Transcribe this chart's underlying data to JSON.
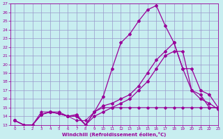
{
  "xlabel": "Windchill (Refroidissement éolien,°C)",
  "bg_color": "#c8eef0",
  "line_color": "#990099",
  "grid_color": "#9999cc",
  "xlim": [
    -0.5,
    23
  ],
  "ylim": [
    13,
    27
  ],
  "xticks": [
    0,
    1,
    2,
    3,
    4,
    5,
    6,
    7,
    8,
    9,
    10,
    11,
    12,
    13,
    14,
    15,
    16,
    17,
    18,
    19,
    20,
    21,
    22,
    23
  ],
  "yticks": [
    13,
    14,
    15,
    16,
    17,
    18,
    19,
    20,
    21,
    22,
    23,
    24,
    25,
    26,
    27
  ],
  "line1_x": [
    0,
    1,
    2,
    3,
    4,
    5,
    6,
    7,
    8,
    9,
    10,
    11,
    12,
    13,
    14,
    15,
    16,
    17,
    18,
    19,
    20,
    21,
    22,
    23
  ],
  "line1_y": [
    13.5,
    13.0,
    13.0,
    14.5,
    14.5,
    14.5,
    14.0,
    13.5,
    13.5,
    14.5,
    15.0,
    15.0,
    15.0,
    15.0,
    15.0,
    15.0,
    15.0,
    15.0,
    15.0,
    15.0,
    15.0,
    15.0,
    15.0,
    15.0
  ],
  "line2_x": [
    0,
    1,
    2,
    3,
    4,
    5,
    6,
    7,
    8,
    9,
    10,
    11,
    12,
    13,
    14,
    15,
    16,
    17,
    18,
    19,
    20,
    21,
    22,
    23
  ],
  "line2_y": [
    13.5,
    13.0,
    13.0,
    14.2,
    14.5,
    14.3,
    14.0,
    14.0,
    13.0,
    14.5,
    16.3,
    19.5,
    22.5,
    23.5,
    25.0,
    26.3,
    26.8,
    24.5,
    22.5,
    19.5,
    17.0,
    16.5,
    15.0,
    15.0
  ],
  "line3_x": [
    0,
    1,
    2,
    3,
    4,
    5,
    6,
    7,
    8,
    9,
    10,
    11,
    12,
    13,
    14,
    15,
    16,
    17,
    18,
    19,
    20,
    21,
    22,
    23
  ],
  "line3_y": [
    13.5,
    13.0,
    13.0,
    14.2,
    14.5,
    14.3,
    14.0,
    14.2,
    13.0,
    14.5,
    15.2,
    15.5,
    16.0,
    16.5,
    17.5,
    19.0,
    20.5,
    21.5,
    22.5,
    19.5,
    19.5,
    17.0,
    16.5,
    15.0
  ],
  "line4_x": [
    0,
    1,
    2,
    3,
    4,
    5,
    6,
    7,
    8,
    9,
    10,
    11,
    12,
    13,
    14,
    15,
    16,
    17,
    18,
    19,
    20,
    21,
    22,
    23
  ],
  "line4_y": [
    13.5,
    13.0,
    13.0,
    14.2,
    14.5,
    14.3,
    14.0,
    14.0,
    13.0,
    14.0,
    14.5,
    15.0,
    15.5,
    16.0,
    17.0,
    18.0,
    19.5,
    21.0,
    21.5,
    21.5,
    17.0,
    16.0,
    15.5,
    14.8
  ]
}
